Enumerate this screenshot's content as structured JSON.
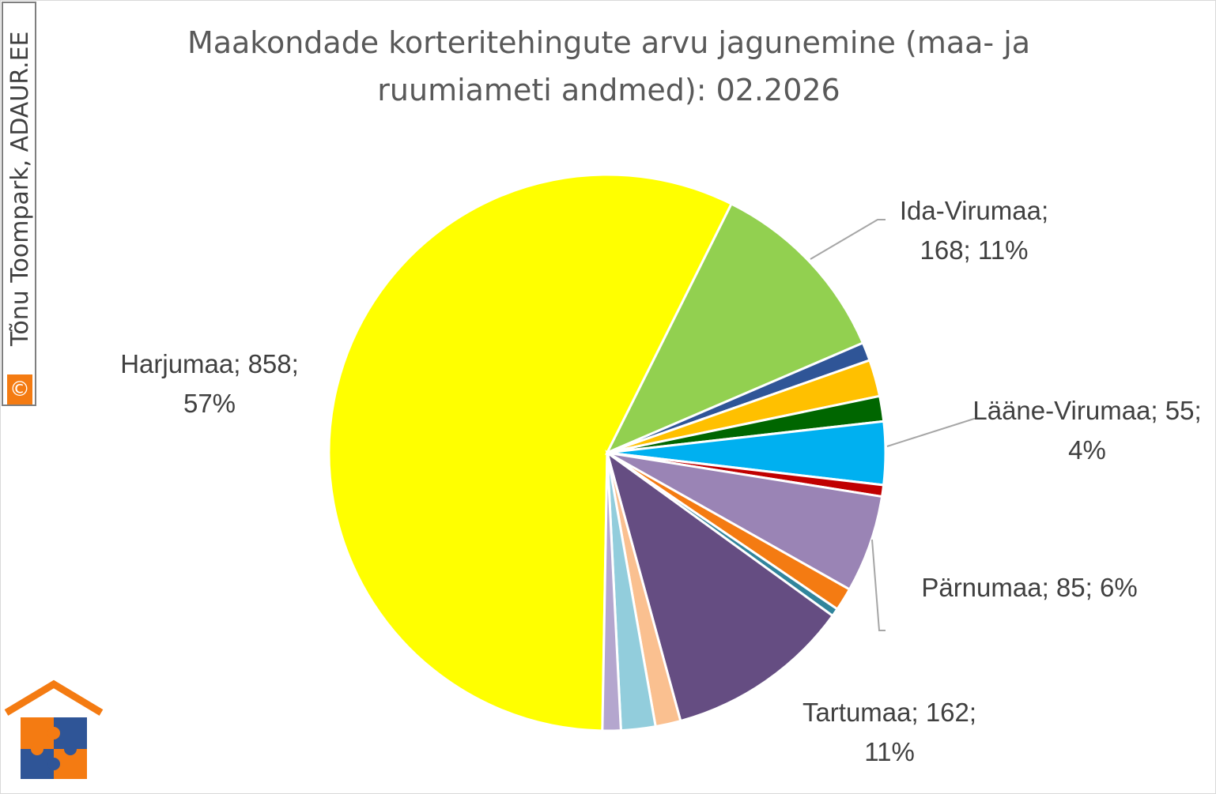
{
  "chart_data": {
    "type": "pie",
    "title": "Maakondade korteritehingute arvu jagunemine (maa- ja ruumiameti andmed): 02.2026",
    "watermark_symbol": "©",
    "watermark": "Tõnu Toompark, ADAUR.EE",
    "categories": [
      "Harjumaa",
      "Ida-Virumaa",
      null,
      null,
      null,
      "Lääne-Virumaa",
      null,
      "Pärnumaa",
      null,
      null,
      "Tartumaa",
      null,
      null,
      null
    ],
    "values": [
      858,
      168,
      16,
      32,
      22,
      55,
      10,
      85,
      20,
      7,
      162,
      22,
      30,
      16
    ],
    "value_labels": [
      "Harjumaa; 858; 57%",
      "Ida-Virumaa; 168; 11%",
      null,
      null,
      null,
      "Lääne-Virumaa; 55; 4%",
      null,
      "Pärnumaa; 85; 6%",
      null,
      null,
      "Tartumaa; 162; 11%",
      null,
      null,
      null
    ],
    "colors": [
      "#ffff00",
      "#92d050",
      "#2f5597",
      "#ffc000",
      "#006600",
      "#00b0f0",
      "#c00000",
      "#9a84b5",
      "#f47b12",
      "#31859c",
      "#654d82",
      "#fac090",
      "#92cddc",
      "#b4a6ce"
    ]
  }
}
